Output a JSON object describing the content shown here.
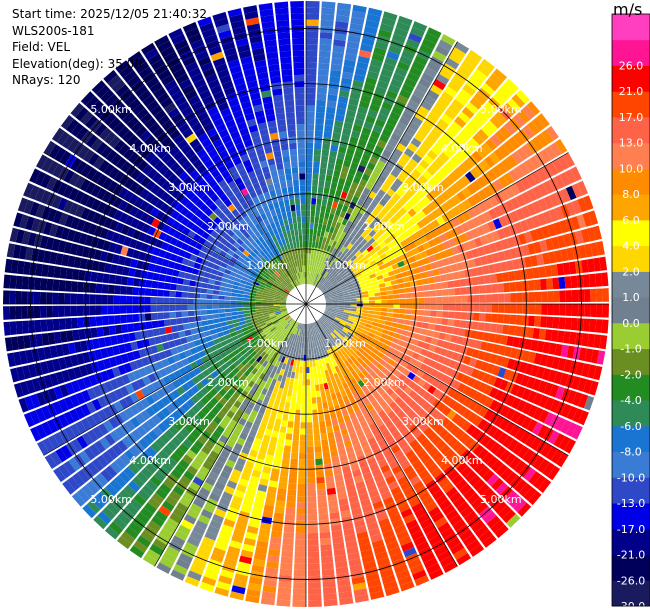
{
  "info": {
    "start_time": "Start time: 2025/12/05 21:40:32",
    "instrument": "WLS200s-181",
    "field": "Field: VEL",
    "elevation": "Elevation(deg): 35.00",
    "nrays": "NRays: 120"
  },
  "colorbar": {
    "unit": "m/s",
    "bins": [
      {
        "label": "-30.0",
        "color": "#1a1a5e"
      },
      {
        "label": "-26.0",
        "color": "#00005a"
      },
      {
        "label": "-21.0",
        "color": "#00008b"
      },
      {
        "label": "-17.0",
        "color": "#0000e6"
      },
      {
        "label": "-13.0",
        "color": "#2f48c8"
      },
      {
        "label": "-10.0",
        "color": "#3a7bd5"
      },
      {
        "label": "-8.0",
        "color": "#1a75d2"
      },
      {
        "label": "-6.0",
        "color": "#2e8b57"
      },
      {
        "label": "-4.0",
        "color": "#228b22"
      },
      {
        "label": "-2.0",
        "color": "#6b8e23"
      },
      {
        "label": "-1.0",
        "color": "#9acd32"
      },
      {
        "label": "0.0",
        "color": "#708090"
      },
      {
        "label": "1.0",
        "color": "#778899"
      },
      {
        "label": "2.0",
        "color": "#ffd700"
      },
      {
        "label": "4.0",
        "color": "#ffff00"
      },
      {
        "label": "6.0",
        "color": "#ffa500"
      },
      {
        "label": "8.0",
        "color": "#ff8c00"
      },
      {
        "label": "10.0",
        "color": "#ff7f50"
      },
      {
        "label": "13.0",
        "color": "#ff6347"
      },
      {
        "label": "17.0",
        "color": "#ff4500"
      },
      {
        "label": "21.0",
        "color": "#ff0000"
      },
      {
        "label": "26.0",
        "color": "#ff1493"
      },
      {
        "label": "",
        "color": "#ff3fbf"
      }
    ]
  },
  "chart_data": {
    "type": "ppi",
    "field": "VEL",
    "units": "m/s",
    "nrays": 120,
    "range_rings_km": [
      {
        "km": 1,
        "label": "1.00km"
      },
      {
        "km": 2,
        "label": "2.00km"
      },
      {
        "km": 3,
        "label": "3.00km"
      },
      {
        "km": 4,
        "label": "4.00km"
      },
      {
        "km": 5,
        "label": "5.00km"
      }
    ],
    "max_range_km": 5.5,
    "azimuth_spokes_deg": [
      0,
      30,
      60,
      90,
      120,
      150,
      180,
      210,
      240,
      270,
      300,
      330
    ],
    "ring_label_azimuths_deg": [
      315,
      45,
      225,
      135
    ],
    "velocity_pattern": {
      "description": "Dipole radial-velocity pattern: positive (receding) velocities toward the east/south-east, negative (approaching) velocities toward the west/north-west, with magnitude increasing with range.",
      "max_positive_azimuth_deg": 120,
      "max_speed_ms": 26,
      "near_zero_ring_km": 1.0
    }
  }
}
